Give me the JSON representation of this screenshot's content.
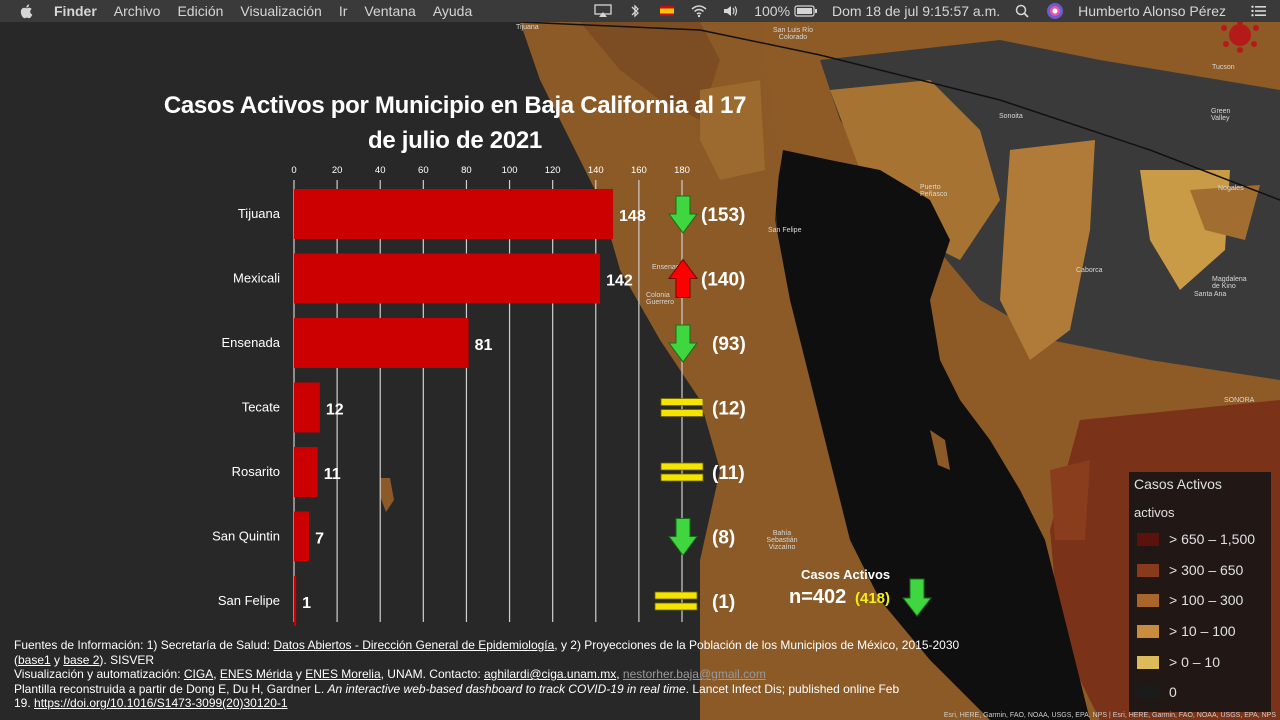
{
  "menubar": {
    "app": "Finder",
    "menus": [
      "Archivo",
      "Edición",
      "Visualización",
      "Ir",
      "Ventana",
      "Ayuda"
    ],
    "battery": "100%",
    "datetime": "Dom 18 de jul  9:15:57 a.m.",
    "user": "Humberto Alonso Pérez"
  },
  "map": {
    "labels": {
      "tijuana": "Tijuana",
      "tucson": "Tucson",
      "sonoita": "Sonoita",
      "green_valley": "Green Valley",
      "san_felipe": "San Felipe",
      "bahia": "Bahía Sebastián Vizcaíno",
      "sonora": "SONORA",
      "magdalena": "Magdalena de Kino",
      "santa_ana": "Santa Ana",
      "nogales": "Nogales",
      "caborca": "Caborca",
      "penasco": "Puerto Peñasco",
      "ensenada_small": "Ensenada",
      "colonia": "Colonia Guerrero",
      "san_luis": "San Luis Río Colorado"
    },
    "attribution": "Esri, HERE, Garmin, FAO, NOAA, USGS, EPA, NPS | Esri, HERE, Garmin, FAO, NOAA, USGS, EPA, NPS"
  },
  "chart_data": {
    "type": "bar",
    "orientation": "horizontal",
    "title": "Casos Activos por Municipio en Baja California al 17 de julio de 2021",
    "xlim": [
      0,
      180
    ],
    "ticks": [
      0,
      20,
      40,
      60,
      80,
      100,
      120,
      140,
      160,
      180
    ],
    "categories": [
      "Tijuana",
      "Mexicali",
      "Ensenada",
      "Tecate",
      "Rosarito",
      "San Quintin",
      "San Felipe"
    ],
    "values": [
      148,
      142,
      81,
      12,
      11,
      7,
      1
    ],
    "previous_labels": [
      "(153)",
      "(140)",
      "(93)",
      "(12)",
      "(11)",
      "(8)",
      "(1)"
    ],
    "trend": [
      "down",
      "up",
      "down",
      "equal",
      "equal",
      "down",
      "equal"
    ],
    "bar_color": "#cc0000",
    "grid": true
  },
  "total": {
    "label": "Casos Activos",
    "value": "n=402",
    "previous": "(418)",
    "trend": "down"
  },
  "legend": {
    "title": "Casos Activos",
    "subtitle": "activos",
    "items": [
      {
        "label": "> 650 – 1,500",
        "color": "#5c120c"
      },
      {
        "label": "> 300 – 650",
        "color": "#8a3a1c"
      },
      {
        "label": "> 100 – 300",
        "color": "#a9652a"
      },
      {
        "label": "> 10 – 100",
        "color": "#c98c3e"
      },
      {
        "label": "> 0 – 10",
        "color": "#ddbb5a"
      },
      {
        "label": "0",
        "color": "#1b1b1b"
      }
    ]
  },
  "sources": {
    "l1_a": "Fuentes de Información: 1) Secretaría de Salud: ",
    "l1_link": "Datos Abiertos - Dirección General de Epidemiología",
    "l1_b": ", y 2) Proyecciones de la Población de los Municipios de México, 2015-2030",
    "l2_open": "(",
    "l2_base1": "base1",
    "l2_y": " y ",
    "l2_base2": "base 2",
    "l2_end": "). SISVER",
    "l3_a": " Visualización y automatización: ",
    "l3_ciga": "CIGA",
    "l3_sep1": ", ",
    "l3_merida": "ENES Mérida",
    "l3_y": " y ",
    "l3_morelia": "ENES Morelia",
    "l3_b": ", UNAM. Contacto: ",
    "l3_mail1": "aghilardi@ciga.unam.mx",
    "l3_comma": ", ",
    "l3_mail2": "nestorher.baja@gmail.com",
    "l4_a": " Plantilla reconstruida a partir de Dong E, Du H, Gardner L. ",
    "l4_italic": "An interactive web-based dashboard to track COVID-19 in real time",
    "l4_b": ". Lancet Infect Dis; published online Feb",
    "l5_a": "19. ",
    "l5_doi": "https://doi.org/10.1016/S1473-3099(20)30120-1"
  }
}
